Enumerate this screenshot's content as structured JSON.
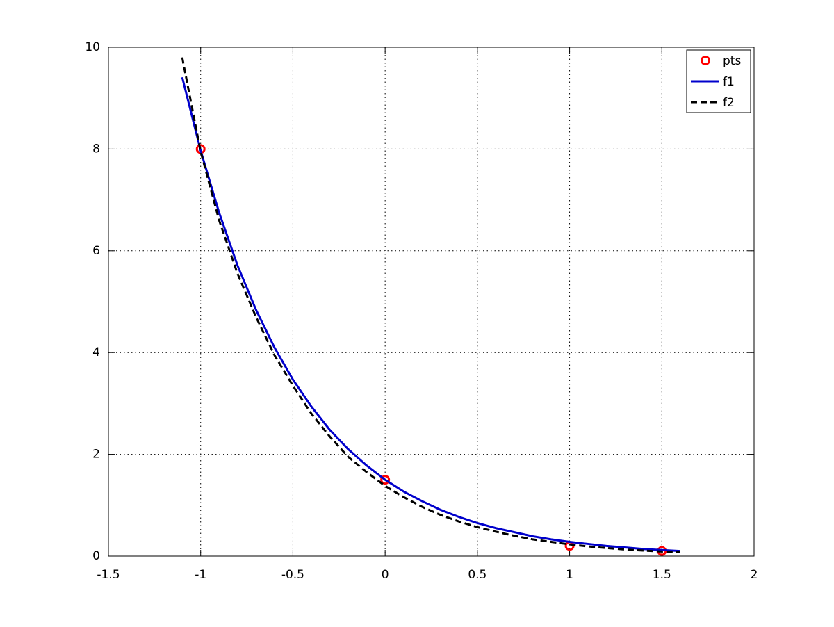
{
  "chart_data": {
    "type": "line",
    "xlim": [
      -1.5,
      2
    ],
    "xticks": [
      -1.5,
      -1,
      -0.5,
      0,
      0.5,
      1,
      1.5,
      2
    ],
    "ylim": [
      0,
      10
    ],
    "yticks": [
      0,
      2,
      4,
      6,
      8,
      10
    ],
    "grid": true,
    "legend": "upper right",
    "series": [
      {
        "name": "pts",
        "color": "#ff0000",
        "style": "markers",
        "x": [
          -1,
          0,
          1,
          1.5
        ],
        "values": [
          8,
          1.5,
          0.2,
          0.1
        ]
      },
      {
        "name": "f1",
        "color": "#0000cc",
        "style": "solid",
        "x": [
          -1.1,
          -1,
          -0.9,
          -0.8,
          -0.7,
          -0.6,
          -0.5,
          -0.4,
          -0.3,
          -0.2,
          -0.1,
          0,
          0.1,
          0.2,
          0.3,
          0.4,
          0.5,
          0.6,
          0.7,
          0.8,
          0.9,
          1,
          1.1,
          1.2,
          1.3,
          1.4,
          1.5,
          1.6
        ],
        "values": [
          9.41,
          7.97,
          6.75,
          5.71,
          4.84,
          4.1,
          3.47,
          2.94,
          2.48,
          2.1,
          1.78,
          1.5,
          1.27,
          1.08,
          0.91,
          0.77,
          0.65,
          0.55,
          0.47,
          0.39,
          0.33,
          0.28,
          0.24,
          0.2,
          0.17,
          0.14,
          0.12,
          0.1
        ]
      },
      {
        "name": "f2",
        "color": "#000000",
        "style": "dashed",
        "x": [
          -1.1,
          -1,
          -0.9,
          -0.8,
          -0.7,
          -0.6,
          -0.5,
          -0.4,
          -0.3,
          -0.2,
          -0.1,
          0,
          0.1,
          0.2,
          0.3,
          0.4,
          0.5,
          0.6,
          0.7,
          0.8,
          0.9,
          1,
          1.1,
          1.2,
          1.3,
          1.4,
          1.5,
          1.6
        ],
        "values": [
          9.8,
          7.95,
          6.6,
          5.55,
          4.7,
          3.95,
          3.35,
          2.8,
          2.35,
          1.95,
          1.65,
          1.38,
          1.16,
          0.97,
          0.81,
          0.68,
          0.57,
          0.48,
          0.4,
          0.33,
          0.28,
          0.23,
          0.19,
          0.16,
          0.13,
          0.11,
          0.09,
          0.08
        ]
      }
    ]
  }
}
